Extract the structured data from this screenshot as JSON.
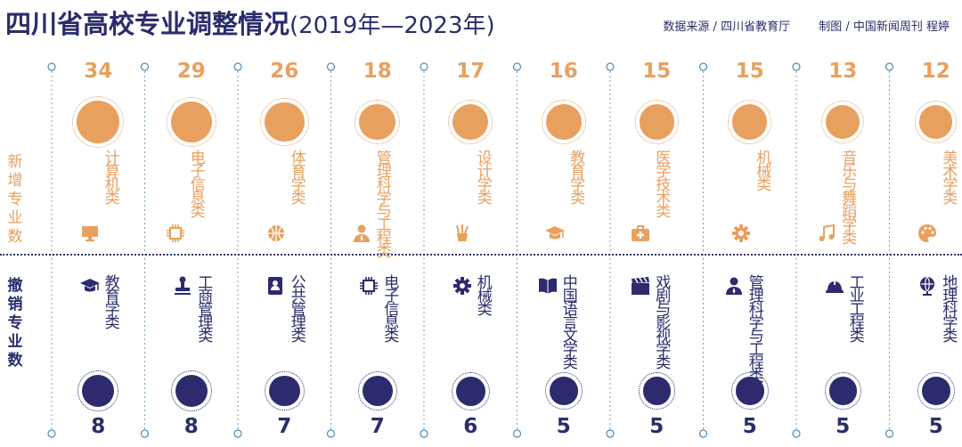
{
  "header": {
    "title": "四川省高校专业调整情况",
    "subtitle": "(2019年—2023年)",
    "source": "数据来源 / 四川省教育厅",
    "credit": "制图 / 中国新闻周刊  程婷"
  },
  "row_labels": {
    "added": "新增专业数",
    "removed": "撤销专业数"
  },
  "colors": {
    "added": "#e8a05f",
    "removed": "#2d2a6e",
    "text_dark": "#2a2d6b"
  },
  "chart_data": {
    "type": "bubble-comparison",
    "title": "四川省高校专业调整情况(2019年—2023年)",
    "series": [
      {
        "name": "新增专业数",
        "items": [
          {
            "category": "计算机类",
            "value": 34,
            "icon": "monitor-icon"
          },
          {
            "category": "电子信息类",
            "value": 29,
            "icon": "chip-icon"
          },
          {
            "category": "体育学类",
            "value": 26,
            "icon": "basketball-icon"
          },
          {
            "category": "管理科学与工程类",
            "value": 18,
            "icon": "person-icon"
          },
          {
            "category": "设计学类",
            "value": 17,
            "icon": "brush-icon"
          },
          {
            "category": "教育学类",
            "value": 16,
            "icon": "graduation-cap-icon"
          },
          {
            "category": "医学技术类",
            "value": 15,
            "icon": "medical-kit-icon"
          },
          {
            "category": "机械类",
            "value": 15,
            "icon": "gear-icon"
          },
          {
            "category": "音乐与舞蹈学类",
            "value": 13,
            "icon": "music-note-icon"
          },
          {
            "category": "美术学类",
            "value": 12,
            "icon": "palette-icon"
          }
        ]
      },
      {
        "name": "撤销专业数",
        "items": [
          {
            "category": "教育学类",
            "value": 8,
            "icon": "graduation-cap-icon"
          },
          {
            "category": "工商管理类",
            "value": 8,
            "icon": "stamp-icon"
          },
          {
            "category": "公共管理类",
            "value": 7,
            "icon": "document-person-icon"
          },
          {
            "category": "电子信息类",
            "value": 7,
            "icon": "chip-icon"
          },
          {
            "category": "机械类",
            "value": 6,
            "icon": "gear-icon"
          },
          {
            "category": "中国语言文学类",
            "value": 5,
            "icon": "book-icon"
          },
          {
            "category": "戏剧与影视学类",
            "value": 5,
            "icon": "clapperboard-icon"
          },
          {
            "category": "管理科学与工程类",
            "value": 5,
            "icon": "person-icon"
          },
          {
            "category": "工业工程类",
            "value": 5,
            "icon": "hard-hat-icon"
          },
          {
            "category": "地理科学类",
            "value": 5,
            "icon": "globe-icon"
          }
        ]
      }
    ]
  }
}
